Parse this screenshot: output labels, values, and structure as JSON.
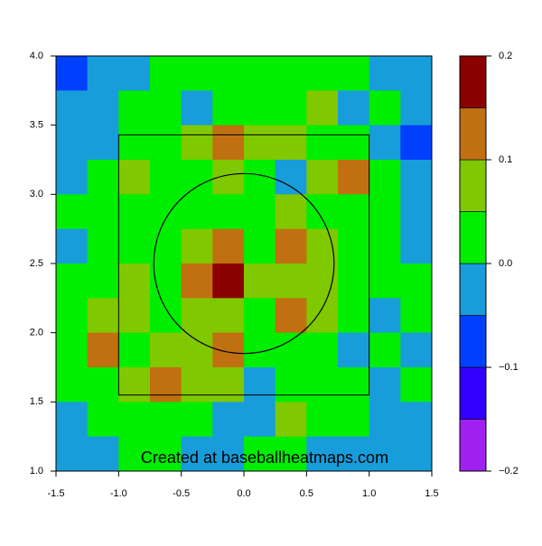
{
  "chart_data": {
    "type": "heatmap",
    "watermark": "Created at baseballheatmaps.com",
    "xlim": [
      -1.5,
      1.5
    ],
    "ylim": [
      1.0,
      4.0
    ],
    "xticks": [
      -1.5,
      {
        "value": -1.0,
        "label": "-1.0"
      },
      -0.5,
      {
        "value": 0.0,
        "label": "0.0"
      },
      0.5,
      {
        "value": 1.0,
        "label": "1.0"
      },
      1.5
    ],
    "yticks": [
      {
        "value": 1.0,
        "label": "1.0"
      },
      1.5,
      {
        "value": 2.0,
        "label": "2.0"
      },
      2.5,
      {
        "value": 3.0,
        "label": "3.0"
      },
      3.5,
      {
        "value": 4.0,
        "label": "4.0"
      }
    ],
    "levels": [
      -0.2,
      -0.15,
      -0.1,
      -0.05,
      0,
      0.05,
      0.1,
      0.15,
      0.2
    ],
    "colors": [
      "#a020f0",
      "#3300ff",
      "#0040ff",
      "#189ddb",
      "#00ee00",
      "#80c800",
      "#c07010",
      "#8b0000"
    ],
    "colorbar_ticks": [
      {
        "value": -0.2,
        "label": "−0.2"
      },
      {
        "value": -0.1,
        "label": "−0.1"
      },
      {
        "value": 0.0,
        "label": "0.0"
      },
      0.1,
      0.2
    ],
    "zone": {
      "x": [
        -1.0,
        1.0
      ],
      "y": [
        1.55,
        3.43
      ]
    },
    "circle": {
      "center": [
        0,
        2.5
      ],
      "radius": [
        0.72,
        0.65
      ]
    },
    "z": [
      [
        -0.06,
        -0.02,
        -0.02,
        0.02,
        0.02,
        0.02,
        0.02,
        0.02,
        0.02,
        0.02,
        -0.02,
        -0.02
      ],
      [
        -0.02,
        -0.02,
        0.02,
        0.02,
        -0.02,
        0.02,
        0.02,
        0.02,
        0.07,
        -0.02,
        0.02,
        -0.02
      ],
      [
        -0.02,
        -0.02,
        0.02,
        0.02,
        0.07,
        0.12,
        0.07,
        0.07,
        0.02,
        0.02,
        -0.02,
        -0.06
      ],
      [
        -0.02,
        0.02,
        0.07,
        0.02,
        0.02,
        0.07,
        0.02,
        -0.02,
        0.07,
        0.12,
        0.02,
        -0.02
      ],
      [
        0.02,
        0.02,
        0.02,
        0.02,
        0.02,
        0.02,
        0.02,
        0.07,
        0.02,
        0.02,
        0.02,
        -0.02
      ],
      [
        -0.02,
        0.02,
        0.02,
        0.02,
        0.07,
        0.12,
        0.02,
        0.12,
        0.07,
        0.02,
        0.02,
        -0.02
      ],
      [
        0.02,
        0.02,
        0.07,
        0.02,
        0.12,
        0.17,
        0.07,
        0.07,
        0.07,
        0.02,
        0.02,
        0.02
      ],
      [
        0.02,
        0.07,
        0.07,
        0.02,
        0.07,
        0.07,
        0.02,
        0.12,
        0.07,
        0.02,
        -0.02,
        0.02
      ],
      [
        0.02,
        0.12,
        0.02,
        0.07,
        0.07,
        0.12,
        0.02,
        0.02,
        0.02,
        -0.02,
        0.02,
        -0.02
      ],
      [
        0.02,
        0.02,
        0.07,
        0.12,
        0.07,
        0.07,
        -0.02,
        0.02,
        0.02,
        0.02,
        -0.02,
        0.02
      ],
      [
        -0.02,
        0.02,
        0.02,
        0.02,
        0.02,
        -0.02,
        -0.02,
        0.07,
        0.02,
        0.02,
        -0.02,
        -0.02
      ],
      [
        -0.02,
        -0.02,
        0.02,
        0.02,
        -0.02,
        -0.02,
        0.02,
        0.02,
        -0.02,
        -0.02,
        -0.02,
        -0.02
      ]
    ]
  }
}
